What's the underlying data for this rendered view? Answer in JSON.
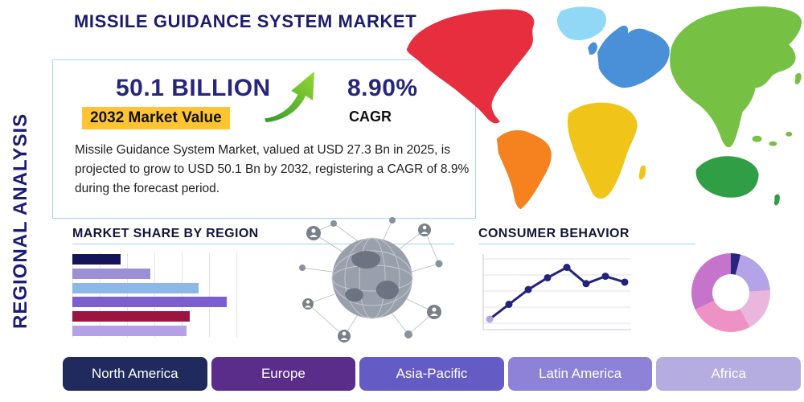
{
  "page": {
    "title": "MISSILE GUIDANCE SYSTEM MARKET",
    "side_label": "REGIONAL ANALYSIS"
  },
  "stats": {
    "market_value": "50.1 BILLION",
    "market_value_label": "2032 Market Value",
    "cagr_value": "8.90%",
    "cagr_label": "CAGR",
    "description": "Missile Guidance System Market, valued at USD 27.3 Bn in 2025, is projected to grow to USD 50.1 Bn by 2032, registering a CAGR of 8.9% during the forecast period.",
    "highlight_color": "#ffc431",
    "accent_navy": "#26267d",
    "arrow_green": "#55b52e"
  },
  "map_colors": {
    "north_america": "#e62e3e",
    "greenland": "#90d8f5",
    "south_america": "#f5821f",
    "europe": "#4a90d9",
    "uk": "#4a90d9",
    "africa": "#f0c419",
    "madagascar": "#f0c419",
    "asia": "#76c043",
    "australia": "#2f9e44",
    "new_zealand": "#2f9e44",
    "japan": "#76c043"
  },
  "regions": [
    {
      "label": "North America",
      "color": "#202a5c"
    },
    {
      "label": "Europe",
      "color": "#5a2d8a"
    },
    {
      "label": "Asia-Pacific",
      "color": "#655bc4"
    },
    {
      "label": "Latin America",
      "color": "#8d82d8"
    },
    {
      "label": "Africa",
      "color": "#b5ace0"
    }
  ],
  "chart_data": [
    {
      "type": "bar",
      "orientation": "horizontal",
      "title": "MARKET SHARE BY REGION",
      "values": [
        29,
        47,
        76,
        93,
        71,
        69
      ],
      "colors": [
        "#14145a",
        "#9d8fd6",
        "#8cb8e8",
        "#7b5fd0",
        "#9c1440",
        "#b3a0e6"
      ],
      "xlim": [
        0,
        100
      ],
      "grid": "vertical",
      "note": "bars unlabeled; values estimated as percent of axis width"
    },
    {
      "type": "line",
      "title": "CONSUMER BEHAVIOR",
      "x": [
        1,
        2,
        3,
        4,
        5,
        6,
        7,
        8
      ],
      "values": [
        1.2,
        3.2,
        5.2,
        6.8,
        8.2,
        6.0,
        7.0,
        6.2
      ],
      "ylim": [
        0,
        10
      ],
      "grid": "horizontal",
      "color": "#23237c",
      "first_point_color": "#b3a4e8",
      "note": "axis unlabeled; values estimated in relative units"
    },
    {
      "type": "pie",
      "title": "",
      "donut": true,
      "slices": [
        {
          "value": 4,
          "color": "#26267d"
        },
        {
          "value": 20,
          "color": "#b5a3e8"
        },
        {
          "value": 18,
          "color": "#eab6dd"
        },
        {
          "value": 26,
          "color": "#ee92c5"
        },
        {
          "value": 32,
          "color": "#c673cc"
        }
      ],
      "note": "unlabeled donut; slice shares estimated"
    }
  ]
}
